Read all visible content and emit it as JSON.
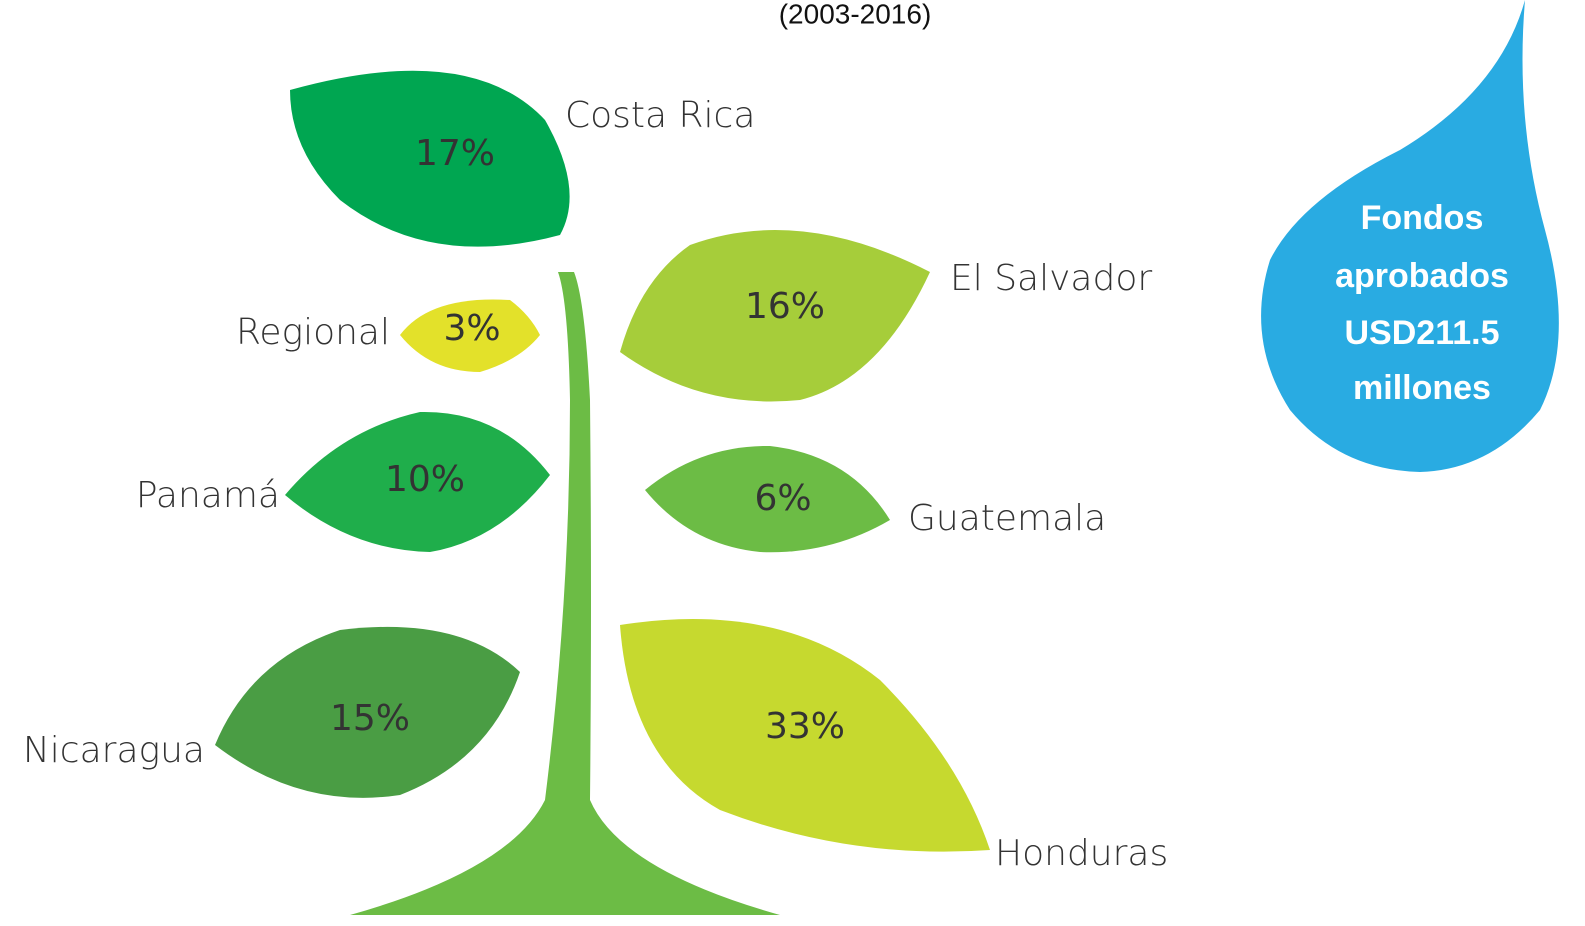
{
  "subtitle": "(2003-2016)",
  "leaves": [
    {
      "label": "Costa Rica",
      "value": "17%"
    },
    {
      "label": "Regional",
      "value": "3%"
    },
    {
      "label": "El Salvador",
      "value": "16%"
    },
    {
      "label": "Panamá",
      "value": "10%"
    },
    {
      "label": "Guatemala",
      "value": "6%"
    },
    {
      "label": "Nicaragua",
      "value": "15%"
    },
    {
      "label": "Honduras",
      "value": "33%"
    }
  ],
  "drop": {
    "lines": [
      "Fondos",
      "aprobados",
      "USD211.5",
      "millones"
    ]
  }
}
